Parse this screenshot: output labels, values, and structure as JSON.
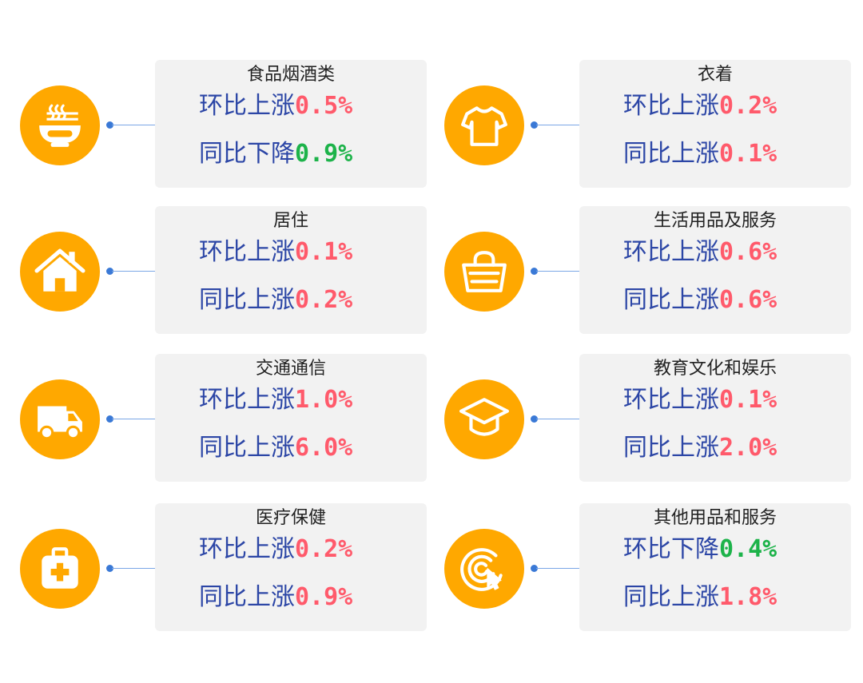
{
  "colors": {
    "accent_circle": "#ffa800",
    "connector": "#3a79d6",
    "label": "#2c46a6",
    "up": "#ff5a6b",
    "down": "#1db34a",
    "card_bg": "#f2f2f2"
  },
  "items": [
    {
      "icon": "noodle-bowl-icon",
      "title": "食品烟酒类",
      "mom_label": "环比上涨",
      "mom_value": "0.5%",
      "mom_dir": "up",
      "yoy_label": "同比下降",
      "yoy_value": "0.9%",
      "yoy_dir": "down"
    },
    {
      "icon": "t-shirt-icon",
      "title": "衣着",
      "mom_label": "环比上涨",
      "mom_value": "0.2%",
      "mom_dir": "up",
      "yoy_label": "同比上涨",
      "yoy_value": "0.1%",
      "yoy_dir": "up"
    },
    {
      "icon": "house-icon",
      "title": "居住",
      "mom_label": "环比上涨",
      "mom_value": "0.1%",
      "mom_dir": "up",
      "yoy_label": "同比上涨",
      "yoy_value": "0.2%",
      "yoy_dir": "up"
    },
    {
      "icon": "basket-icon",
      "title": "生活用品及服务",
      "mom_label": "环比上涨",
      "mom_value": "0.6%",
      "mom_dir": "up",
      "yoy_label": "同比上涨",
      "yoy_value": "0.6%",
      "yoy_dir": "up"
    },
    {
      "icon": "van-icon",
      "title": "交通通信",
      "mom_label": "环比上涨",
      "mom_value": "1.0%",
      "mom_dir": "up",
      "yoy_label": "同比上涨",
      "yoy_value": "6.0%",
      "yoy_dir": "up"
    },
    {
      "icon": "graduation-cap-icon",
      "title": "教育文化和娱乐",
      "mom_label": "环比上涨",
      "mom_value": "0.1%",
      "mom_dir": "up",
      "yoy_label": "同比上涨",
      "yoy_value": "2.0%",
      "yoy_dir": "up"
    },
    {
      "icon": "first-aid-kit-icon",
      "title": "医疗保健",
      "mom_label": "环比上涨",
      "mom_value": "0.2%",
      "mom_dir": "up",
      "yoy_label": "同比上涨",
      "yoy_value": "0.9%",
      "yoy_dir": "up"
    },
    {
      "icon": "target-cursor-icon",
      "title": "其他用品和服务",
      "mom_label": "环比下降",
      "mom_value": "0.4%",
      "mom_dir": "down",
      "yoy_label": "同比上涨",
      "yoy_value": "1.8%",
      "yoy_dir": "up"
    }
  ]
}
